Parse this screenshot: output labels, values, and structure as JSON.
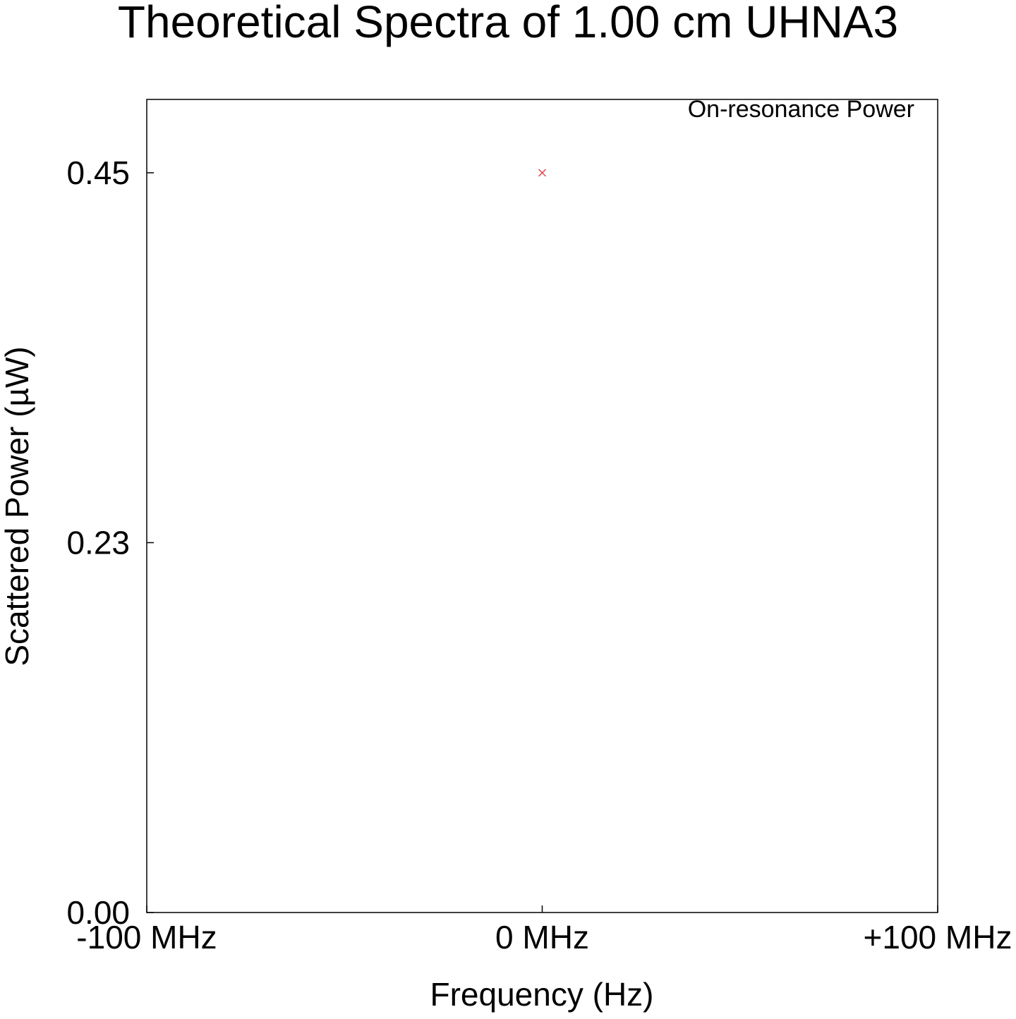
{
  "chart_data": {
    "type": "scatter",
    "title": "Theoretical Spectra of 1.00 cm UHNA3",
    "xlabel": "Frequency (Hz)",
    "ylabel": "Scattered Power (µW)",
    "xlim": [
      -100,
      100
    ],
    "ylim": [
      0,
      0.45
    ],
    "x_ticks": [
      {
        "value": -100,
        "label": "-100 MHz"
      },
      {
        "value": 0,
        "label": "0 MHz"
      },
      {
        "value": 100,
        "label": "+100 MHz"
      }
    ],
    "y_ticks": [
      {
        "value": 0,
        "label": "0.00"
      },
      {
        "value": 0.225,
        "label": "0.23"
      },
      {
        "value": 0.45,
        "label": "0.45"
      }
    ],
    "grid": false,
    "legend_position": "top-right",
    "series": [
      {
        "name": "On-resonance Power",
        "color": "#e8393f",
        "marker": "x",
        "points": [
          {
            "x": 0,
            "y": 0.45
          }
        ]
      }
    ]
  }
}
